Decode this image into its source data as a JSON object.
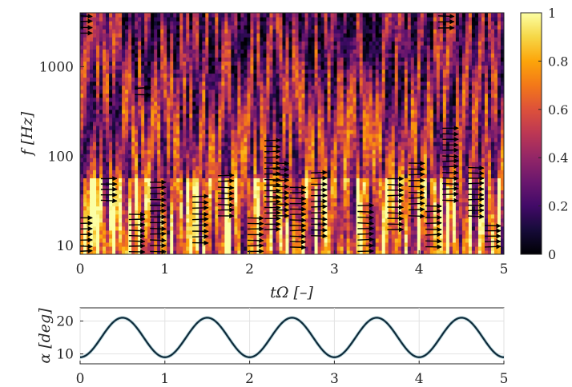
{
  "chart_data": [
    {
      "type": "heatmap",
      "title": "",
      "xlabel": "tΩ [–]",
      "ylabel": "f [Hz]",
      "x_ticks": [
        "0",
        "1",
        "2",
        "3",
        "4",
        "5"
      ],
      "y_ticks": [
        "10",
        "100",
        "1000"
      ],
      "xlim": [
        0,
        5
      ],
      "ylim": [
        8,
        4000
      ],
      "y_scale": "log",
      "colormap": "inferno",
      "colorbar": {
        "range": [
          0,
          1
        ],
        "ticks": [
          "0",
          "0.2",
          "0.4",
          "0.6",
          "0.8",
          "1"
        ]
      },
      "high_value_band_hz": [
        8,
        60
      ],
      "arrow_field": {
        "description_note": "",
        "clusters": [
          {
            "t": 0.03,
            "f_lo": 8,
            "f_hi": 22
          },
          {
            "t": 0.03,
            "f_lo": 2200,
            "f_hi": 4000
          },
          {
            "t": 0.32,
            "f_lo": 30,
            "f_hi": 60
          },
          {
            "t": 0.65,
            "f_lo": 8,
            "f_hi": 24
          },
          {
            "t": 0.72,
            "f_lo": 450,
            "f_hi": 620
          },
          {
            "t": 0.9,
            "f_lo": 8,
            "f_hi": 55
          },
          {
            "t": 1.4,
            "f_lo": 10,
            "f_hi": 38
          },
          {
            "t": 1.7,
            "f_lo": 20,
            "f_hi": 65
          },
          {
            "t": 2.05,
            "f_lo": 8,
            "f_hi": 22
          },
          {
            "t": 2.25,
            "f_lo": 14,
            "f_hi": 160
          },
          {
            "t": 2.35,
            "f_lo": 20,
            "f_hi": 90
          },
          {
            "t": 2.55,
            "f_lo": 9,
            "f_hi": 48
          },
          {
            "t": 2.8,
            "f_lo": 12,
            "f_hi": 70
          },
          {
            "t": 3.35,
            "f_lo": 8,
            "f_hi": 30
          },
          {
            "t": 3.7,
            "f_lo": 14,
            "f_hi": 60
          },
          {
            "t": 3.95,
            "f_lo": 20,
            "f_hi": 90
          },
          {
            "t": 4.15,
            "f_lo": 9,
            "f_hi": 30
          },
          {
            "t": 4.35,
            "f_lo": 30,
            "f_hi": 220
          },
          {
            "t": 4.3,
            "f_lo": 2500,
            "f_hi": 4000
          },
          {
            "t": 4.65,
            "f_lo": 20,
            "f_hi": 80
          },
          {
            "t": 4.85,
            "f_lo": 9,
            "f_hi": 18
          }
        ]
      }
    },
    {
      "type": "line",
      "title": "",
      "xlabel": "",
      "ylabel": "α [deg]",
      "x_ticks": [
        "0",
        "1",
        "2",
        "3",
        "4",
        "5"
      ],
      "y_ticks": [
        "10",
        "20"
      ],
      "xlim": [
        0,
        5
      ],
      "ylim": [
        7,
        24
      ],
      "grid": true,
      "series": [
        {
          "color": "#0f2a3a",
          "function": "alpha = 15 - 6*cos(2*pi*tOmega)",
          "x": [
            0,
            0.25,
            0.5,
            0.75,
            1.0,
            1.25,
            1.5,
            1.75,
            2.0,
            2.25,
            2.5,
            2.75,
            3.0,
            3.25,
            3.5,
            3.75,
            4.0,
            4.25,
            4.5,
            4.75,
            5.0
          ],
          "values": [
            9,
            15,
            21,
            15,
            9,
            15,
            21,
            15,
            9,
            15,
            21,
            15,
            9,
            15,
            21,
            15,
            9,
            15,
            21,
            15,
            9
          ]
        }
      ]
    }
  ]
}
